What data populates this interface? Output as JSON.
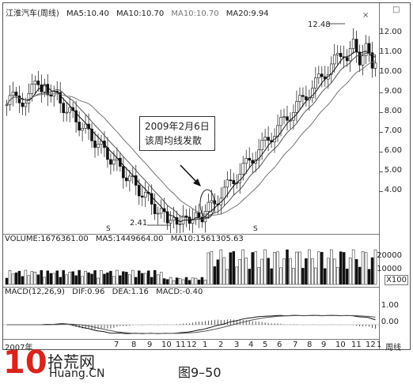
{
  "header": {
    "stock_name": "江淮汽车(周线)",
    "ma5": "MA5:10.40",
    "ma10": "MA10:10.70",
    "ma10_dup": "MA10:10.70",
    "ma20": "MA20:9.94"
  },
  "price_axis": [
    "12.00",
    "11.00",
    "10.00",
    "9.00",
    "8.00",
    "7.00",
    "6.00",
    "5.00",
    "4.00"
  ],
  "annotations": {
    "high_label": "12.48",
    "low_label": "2.41",
    "box_line1": "2009年2月6日",
    "box_line2": "该周均线发散",
    "s_mark_1": "S",
    "s_mark_2": "S"
  },
  "volume_panel": {
    "header_volume": "VOLUME:1676361.00",
    "header_ma5": "MA5:1449664.00",
    "header_ma10": "MA10:1561305.63",
    "axis": [
      "20000",
      "10000"
    ],
    "unit": "X100"
  },
  "macd_panel": {
    "header_macd": "MACD(12,26,9)",
    "header_dif": "DIF:0.96",
    "header_dea": "DEA:1.16",
    "header_val": "MACD:-0.40",
    "axis": [
      "1.00",
      "0.00"
    ]
  },
  "x_axis": {
    "labels": [
      "2007年",
      "",
      "7",
      "8",
      "9",
      "10",
      "11",
      "12",
      "1",
      "2",
      "3",
      "4",
      "5",
      "6",
      "7",
      "8",
      "9",
      "10",
      "11",
      "12",
      "1"
    ],
    "period_label": "周线"
  },
  "watermark": {
    "big": "10",
    "brand": "拾荒网",
    "url": "Huang.CN"
  },
  "caption": "图9–50",
  "colors": {
    "candle": "#111111",
    "ma": "#333333",
    "logo_red": "#d9241c"
  }
}
